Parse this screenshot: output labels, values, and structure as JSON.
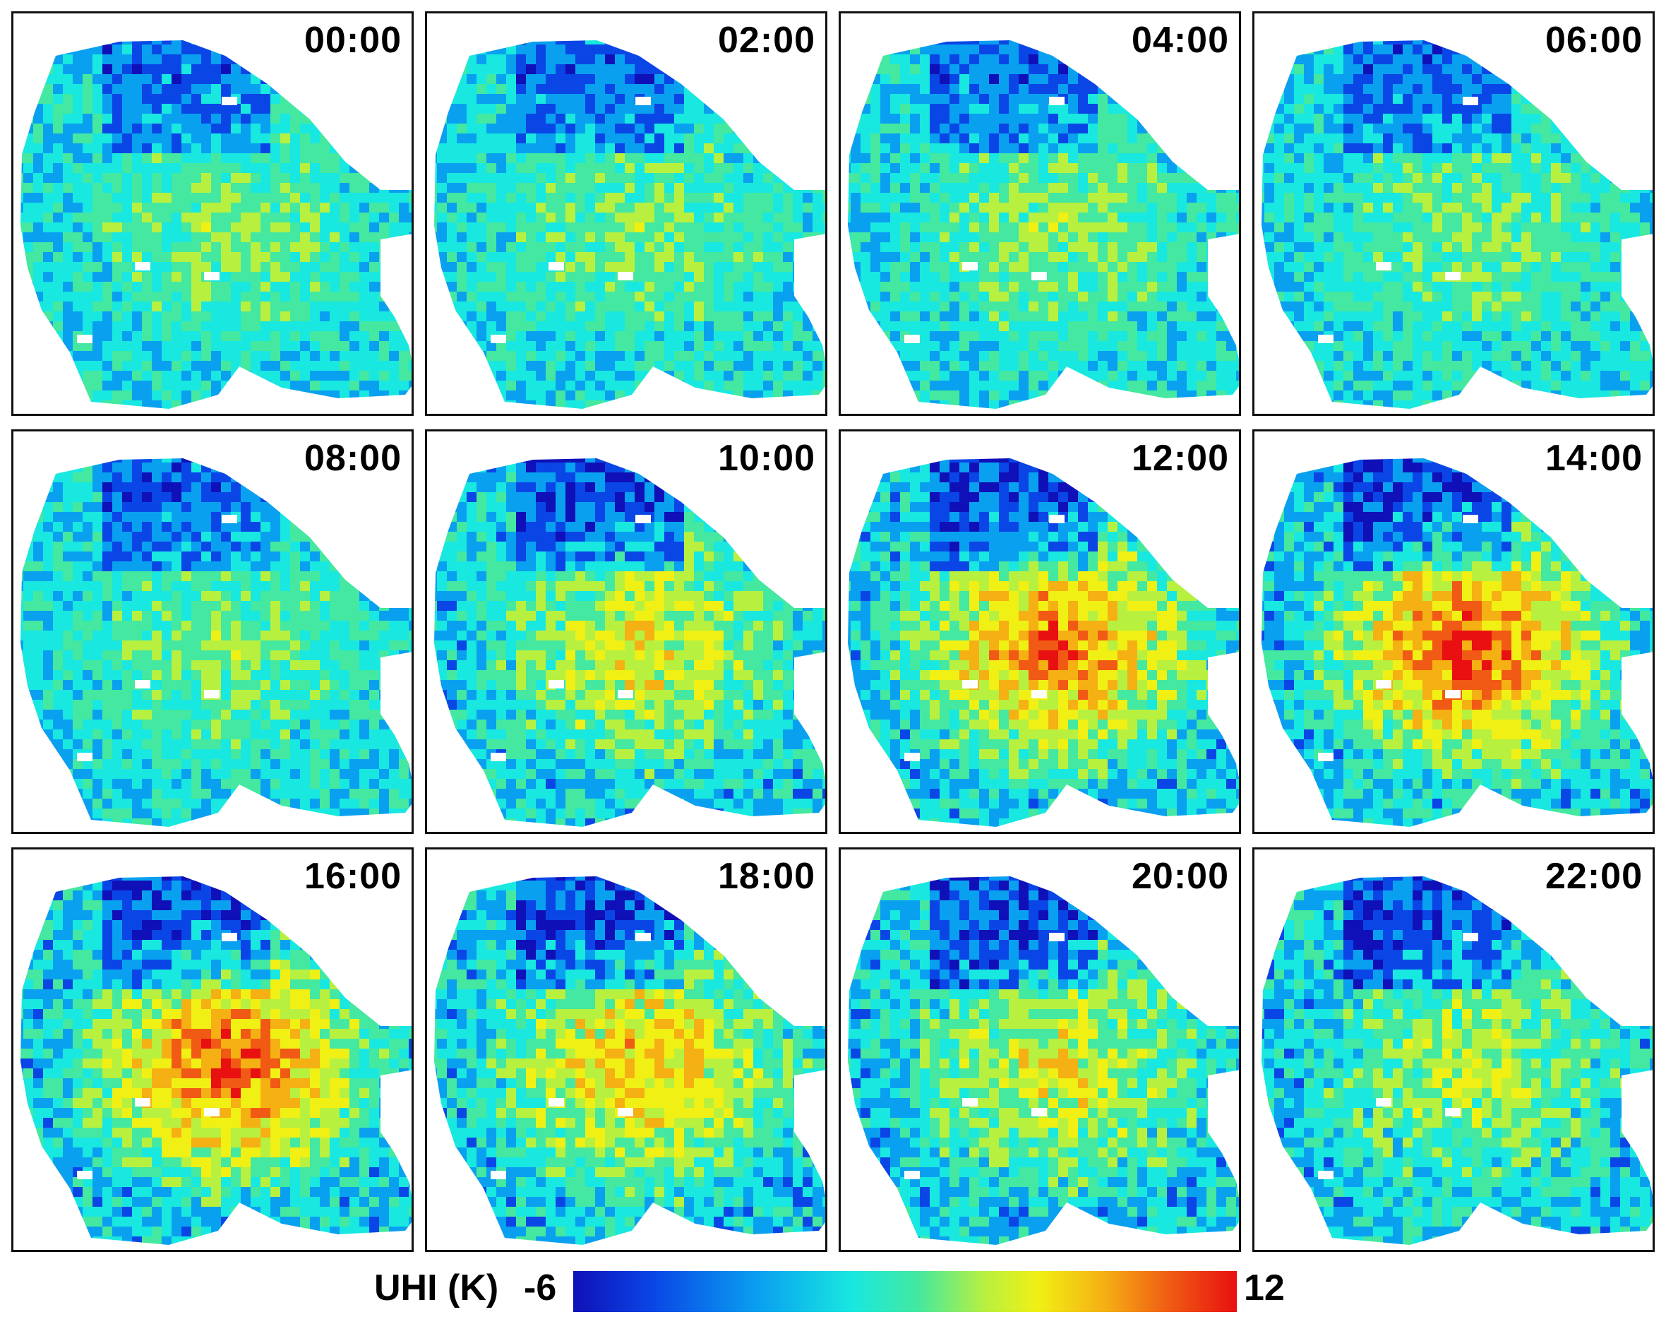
{
  "panels": [
    {
      "time": "00:00",
      "intensity": 0.3
    },
    {
      "time": "02:00",
      "intensity": 0.28
    },
    {
      "time": "04:00",
      "intensity": 0.27
    },
    {
      "time": "06:00",
      "intensity": 0.27
    },
    {
      "time": "08:00",
      "intensity": 0.26
    },
    {
      "time": "10:00",
      "intensity": 0.48
    },
    {
      "time": "12:00",
      "intensity": 0.72
    },
    {
      "time": "14:00",
      "intensity": 0.82
    },
    {
      "time": "16:00",
      "intensity": 0.78
    },
    {
      "time": "18:00",
      "intensity": 0.6
    },
    {
      "time": "20:00",
      "intensity": 0.45
    },
    {
      "time": "22:00",
      "intensity": 0.36
    }
  ],
  "legend": {
    "label": "UHI (K)",
    "min_label": "-6",
    "max_label": "12",
    "min": -6,
    "max": 12,
    "colors": [
      "#1010b8",
      "#0a46e6",
      "#0aa0f0",
      "#18e8e0",
      "#44e8a0",
      "#b8f040",
      "#f0f014",
      "#f5b014",
      "#f05a14",
      "#e81010"
    ]
  }
}
